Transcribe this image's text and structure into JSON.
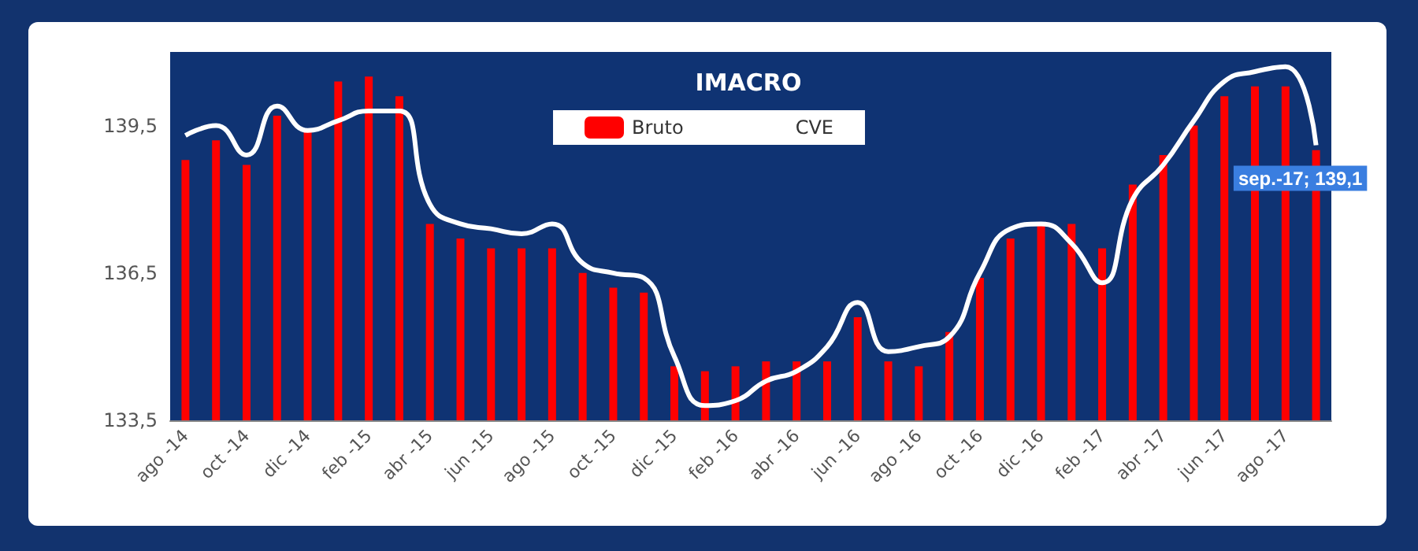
{
  "chart_data": {
    "type": "bar",
    "title": "IMACRO",
    "categories": [
      "ago -14",
      null,
      "oct -14",
      null,
      "dic -14",
      null,
      "feb -15",
      null,
      "abr -15",
      null,
      "jun -15",
      null,
      "ago -15",
      null,
      "oct -15",
      null,
      "dic -15",
      null,
      "feb -16",
      null,
      "abr -16",
      null,
      "jun -16",
      null,
      "ago -16",
      null,
      "oct -16",
      null,
      "dic -16",
      null,
      "feb -17",
      null,
      "abr -17",
      null,
      "jun -17",
      null,
      "ago -17",
      null
    ],
    "series": [
      {
        "name": "Bruto",
        "color": "#ff0000",
        "values": [
          138.8,
          139.2,
          138.7,
          139.7,
          139.4,
          140.4,
          140.5,
          140.1,
          137.5,
          137.2,
          137.0,
          137.0,
          137.0,
          136.5,
          136.2,
          136.1,
          134.6,
          134.5,
          134.6,
          134.7,
          134.7,
          134.7,
          135.6,
          134.7,
          134.6,
          135.3,
          136.4,
          137.2,
          137.5,
          137.5,
          137.0,
          138.3,
          138.9,
          139.5,
          140.1,
          140.3,
          140.3,
          139.0
        ]
      },
      {
        "name": "CVE",
        "type": "line",
        "color": "#ffffff",
        "values": [
          139.3,
          139.5,
          138.9,
          139.9,
          139.4,
          139.6,
          139.8,
          139.8,
          137.9,
          137.5,
          137.4,
          137.3,
          137.5,
          136.7,
          136.5,
          136.4,
          134.8,
          133.8,
          133.9,
          134.3,
          134.5,
          135.0,
          135.9,
          134.9,
          135.0,
          135.2,
          136.5,
          137.4,
          137.5,
          137.1,
          136.3,
          138.0,
          138.7,
          139.6,
          140.4,
          140.6,
          140.7,
          139.1
        ],
        "value_labels": [
          null,
          null,
          null,
          null,
          null,
          null,
          null,
          null,
          null,
          null,
          null,
          null,
          null,
          null,
          null,
          null,
          null,
          null,
          null,
          null,
          null,
          null,
          null,
          null,
          null,
          null,
          null,
          null,
          null,
          null,
          null,
          null,
          null,
          null,
          null,
          null,
          null,
          "sep.-17; 139,1"
        ]
      }
    ],
    "ylim": [
      133.5,
      141
    ],
    "yticks": [
      {
        "value": 133.5,
        "label": "133,5"
      },
      {
        "value": 136.5,
        "label": "136,5"
      },
      {
        "value": 139.5,
        "label": "139,5"
      }
    ],
    "grid": false,
    "legend": "top"
  }
}
